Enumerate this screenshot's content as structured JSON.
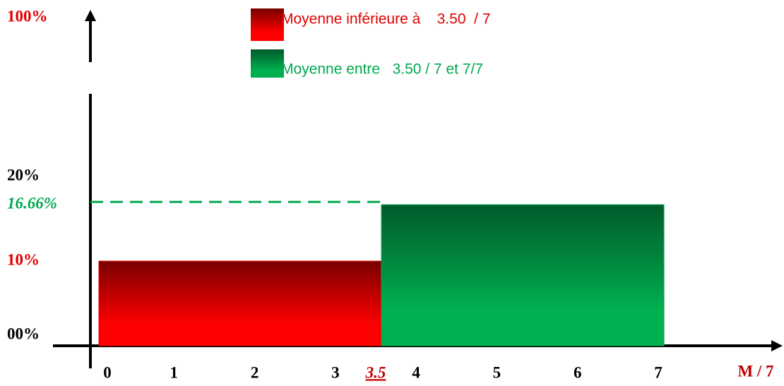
{
  "chart_data": {
    "type": "histogram",
    "bins": [
      0,
      3.5,
      7
    ],
    "values": [
      10,
      16.66
    ],
    "colors": [
      "#e00000",
      "#00a84f"
    ],
    "legend": [
      "Moyenne inférieure à    3.50  / 7",
      "Moyenne entre   3.50 / 7 et 7/7"
    ],
    "legend_colors": [
      "#e00000",
      "#00a84f"
    ],
    "xlabel": "M / 7",
    "xlim": [
      0,
      7
    ],
    "xticks": [
      0,
      1,
      2,
      3,
      3.5,
      4,
      5,
      6,
      7
    ],
    "ylim": [
      0,
      100
    ],
    "broken_axis": true,
    "yticks": [
      {
        "value": 0,
        "label": "00%",
        "color": "#000000"
      },
      {
        "value": 10,
        "label": "10%",
        "color": "#e00000"
      },
      {
        "value": 16.66,
        "label": "16.66%",
        "color": "#00a84f",
        "italic": true,
        "guide": true
      },
      {
        "value": 20,
        "label": "20%",
        "color": "#000000"
      },
      {
        "value": 100,
        "label": "100%",
        "color": "#e00000"
      }
    ]
  }
}
